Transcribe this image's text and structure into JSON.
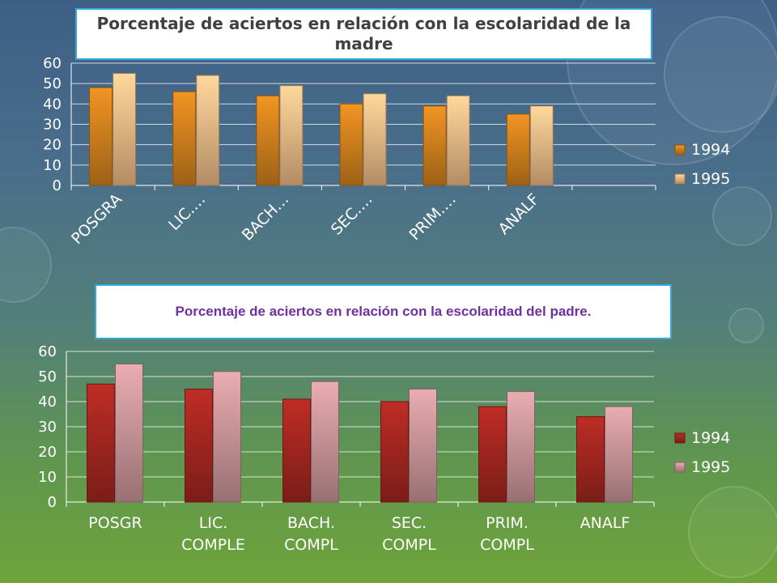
{
  "chart_data": [
    {
      "type": "bar",
      "title": "Porcentaje de aciertos en relación con la escolaridad de la madre",
      "categories": [
        "POSGRA",
        "LIC.…",
        "BACH…",
        "SEC.…",
        "PRIM.…",
        "ANALF"
      ],
      "series": [
        {
          "name": "1994",
          "values": [
            48,
            46,
            44,
            40,
            39,
            35
          ]
        },
        {
          "name": "1995",
          "values": [
            55,
            54,
            49,
            45,
            44,
            39
          ]
        }
      ],
      "yticks": [
        "0",
        "10",
        "20",
        "30",
        "40",
        "50",
        "60"
      ],
      "ylim": [
        0,
        60
      ],
      "grid": true,
      "legend": "right",
      "colors": [
        "#e08a20",
        "#ffc890"
      ]
    },
    {
      "type": "bar",
      "title": "Porcentaje de aciertos en relación con la escolaridad del padre.",
      "categories": [
        "POSGR",
        "LIC.\nCOMPLE",
        "BACH.\nCOMPL",
        "SEC.\nCOMPL",
        "PRIM.\nCOMPL",
        "ANALF"
      ],
      "series": [
        {
          "name": "1994",
          "values": [
            47,
            45,
            41,
            40,
            38,
            34
          ]
        },
        {
          "name": "1995",
          "values": [
            55,
            52,
            48,
            45,
            44,
            38
          ]
        }
      ],
      "yticks": [
        "0",
        "10",
        "20",
        "30",
        "40",
        "50",
        "60"
      ],
      "ylim": [
        0,
        60
      ],
      "grid": true,
      "legend": "right",
      "colors": [
        "#b02a22",
        "#d9a0a4"
      ]
    }
  ]
}
